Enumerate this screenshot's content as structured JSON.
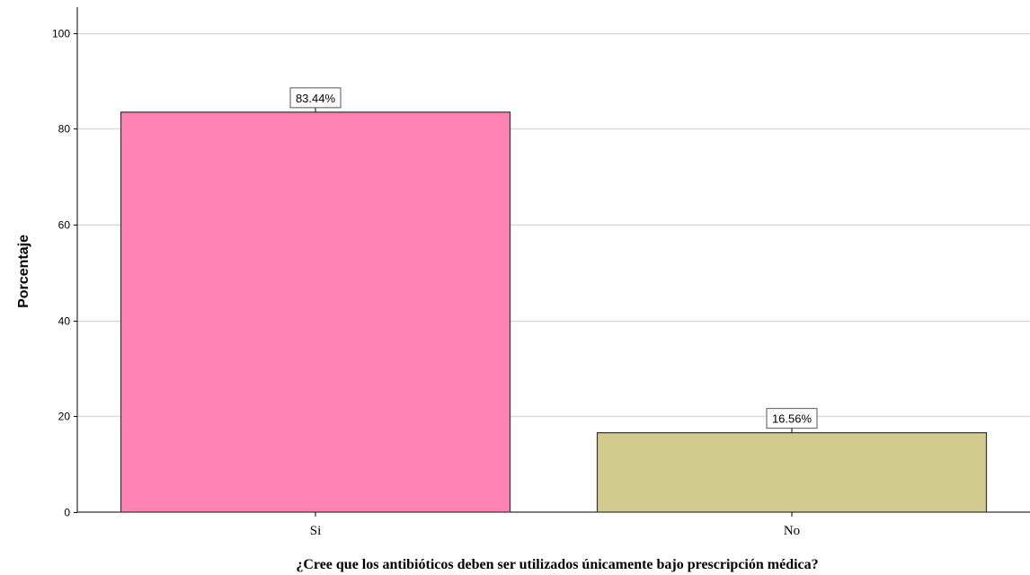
{
  "chart_data": {
    "type": "bar",
    "categories": [
      "Si",
      "No"
    ],
    "values": [
      83.44,
      16.56
    ],
    "data_labels": [
      "83.44%",
      "16.56%"
    ],
    "bar_colors": [
      "#ff82b4",
      "#d2cb8e"
    ],
    "xlabel": "¿Cree que los antibióticos deben ser utilizados únicamente bajo prescripción médica?",
    "ylabel": "Porcentaje",
    "ylim": [
      0,
      105
    ],
    "yticks": [
      0,
      20,
      40,
      60,
      80,
      100
    ],
    "ytick_labels": [
      "0",
      "20",
      "40",
      "60",
      "80",
      "100"
    ],
    "grid": "horizontal",
    "legend": "none"
  }
}
